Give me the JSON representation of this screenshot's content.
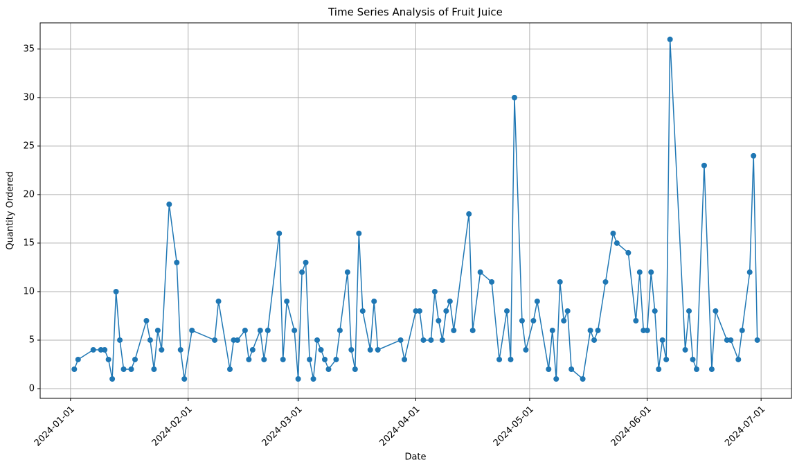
{
  "chart_data": {
    "type": "line",
    "title": "Time Series Analysis of Fruit Juice",
    "x_label": "Date",
    "y_label": "Quantity Ordered",
    "x": [
      "2024-01-02",
      "2024-01-03",
      "2024-01-07",
      "2024-01-09",
      "2024-01-10",
      "2024-01-11",
      "2024-01-12",
      "2024-01-13",
      "2024-01-14",
      "2024-01-15",
      "2024-01-17",
      "2024-01-18",
      "2024-01-21",
      "2024-01-22",
      "2024-01-23",
      "2024-01-24",
      "2024-01-25",
      "2024-01-27",
      "2024-01-29",
      "2024-01-30",
      "2024-01-31",
      "2024-02-02",
      "2024-02-08",
      "2024-02-09",
      "2024-02-12",
      "2024-02-13",
      "2024-02-14",
      "2024-02-16",
      "2024-02-17",
      "2024-02-18",
      "2024-02-20",
      "2024-02-21",
      "2024-02-22",
      "2024-02-25",
      "2024-02-26",
      "2024-02-27",
      "2024-02-29",
      "2024-03-01",
      "2024-03-02",
      "2024-03-03",
      "2024-03-04",
      "2024-03-05",
      "2024-03-06",
      "2024-03-07",
      "2024-03-08",
      "2024-03-09",
      "2024-03-11",
      "2024-03-12",
      "2024-03-14",
      "2024-03-15",
      "2024-03-16",
      "2024-03-17",
      "2024-03-18",
      "2024-03-20",
      "2024-03-21",
      "2024-03-22",
      "2024-03-28",
      "2024-03-29",
      "2024-04-01",
      "2024-04-02",
      "2024-04-03",
      "2024-04-05",
      "2024-04-06",
      "2024-04-07",
      "2024-04-08",
      "2024-04-09",
      "2024-04-10",
      "2024-04-11",
      "2024-04-15",
      "2024-04-16",
      "2024-04-18",
      "2024-04-21",
      "2024-04-23",
      "2024-04-25",
      "2024-04-26",
      "2024-04-27",
      "2024-04-29",
      "2024-04-30",
      "2024-05-02",
      "2024-05-03",
      "2024-05-06",
      "2024-05-07",
      "2024-05-08",
      "2024-05-09",
      "2024-05-10",
      "2024-05-11",
      "2024-05-12",
      "2024-05-15",
      "2024-05-17",
      "2024-05-18",
      "2024-05-19",
      "2024-05-21",
      "2024-05-23",
      "2024-05-24",
      "2024-05-27",
      "2024-05-29",
      "2024-05-30",
      "2024-05-31",
      "2024-06-01",
      "2024-06-02",
      "2024-06-03",
      "2024-06-04",
      "2024-06-05",
      "2024-06-06",
      "2024-06-07",
      "2024-06-11",
      "2024-06-12",
      "2024-06-13",
      "2024-06-14",
      "2024-06-16",
      "2024-06-18",
      "2024-06-19",
      "2024-06-22",
      "2024-06-23",
      "2024-06-25",
      "2024-06-26",
      "2024-06-28",
      "2024-06-29",
      "2024-06-30"
    ],
    "series": [
      {
        "name": "Quantity Ordered",
        "color": "#1f77b4",
        "values": [
          2,
          3,
          4,
          4,
          4,
          3,
          1,
          10,
          5,
          2,
          2,
          3,
          7,
          5,
          2,
          6,
          4,
          19,
          13,
          4,
          1,
          6,
          5,
          9,
          2,
          5,
          5,
          6,
          3,
          4,
          6,
          3,
          6,
          16,
          3,
          9,
          6,
          1,
          12,
          13,
          3,
          1,
          5,
          4,
          3,
          2,
          3,
          6,
          12,
          4,
          2,
          16,
          8,
          4,
          9,
          4,
          5,
          3,
          8,
          8,
          5,
          5,
          10,
          7,
          5,
          8,
          9,
          6,
          18,
          6,
          12,
          11,
          3,
          8,
          3,
          30,
          7,
          4,
          7,
          9,
          2,
          6,
          1,
          11,
          7,
          8,
          2,
          1,
          6,
          5,
          6,
          11,
          16,
          15,
          14,
          7,
          12,
          6,
          6,
          12,
          8,
          2,
          5,
          3,
          36,
          4,
          8,
          3,
          2,
          23,
          2,
          8,
          5,
          5,
          3,
          6,
          12,
          24,
          5
        ]
      }
    ],
    "xlim": [
      "2023-12-24",
      "2024-07-09"
    ],
    "xticks": [
      "2024-01-01",
      "2024-02-01",
      "2024-03-01",
      "2024-04-01",
      "2024-05-01",
      "2024-06-01",
      "2024-07-01"
    ],
    "ylim": [
      -1,
      37.7
    ],
    "yticks": [
      0,
      5,
      10,
      15,
      20,
      25,
      30,
      35
    ],
    "grid": true
  }
}
